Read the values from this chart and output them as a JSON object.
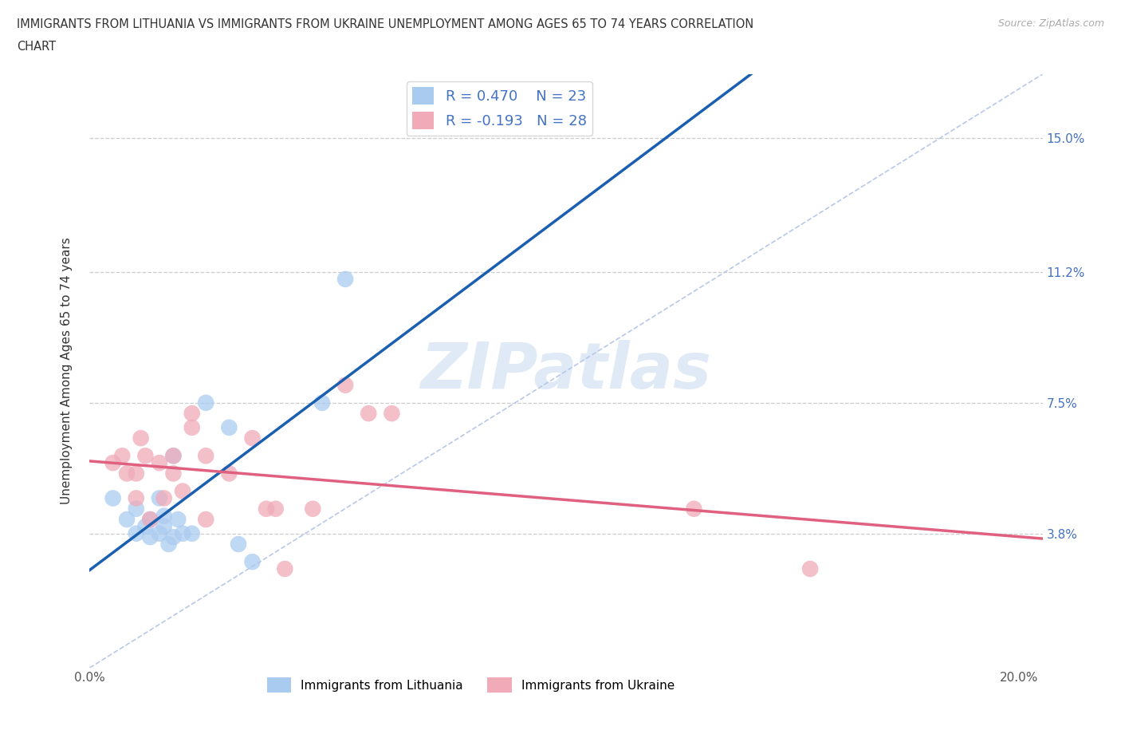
{
  "title_line1": "IMMIGRANTS FROM LITHUANIA VS IMMIGRANTS FROM UKRAINE UNEMPLOYMENT AMONG AGES 65 TO 74 YEARS CORRELATION",
  "title_line2": "CHART",
  "source": "Source: ZipAtlas.com",
  "ylabel": "Unemployment Among Ages 65 to 74 years",
  "xlim": [
    0.0,
    0.205
  ],
  "ylim": [
    0.0,
    0.168
  ],
  "xtick_vals": [
    0.0,
    0.05,
    0.1,
    0.15,
    0.2
  ],
  "ytick_positions": [
    0.038,
    0.075,
    0.112,
    0.15
  ],
  "ytick_labels": [
    "3.8%",
    "7.5%",
    "11.2%",
    "15.0%"
  ],
  "R_lithuania": 0.47,
  "N_lithuania": 23,
  "R_ukraine": -0.193,
  "N_ukraine": 28,
  "color_lithuania": "#aacbf0",
  "color_ukraine": "#f0aab8",
  "line_color_lithuania": "#1a5fb0",
  "line_color_ukraine": "#e06080",
  "diagonal_color": "#b8c8e8",
  "watermark_color": "#dce8f5",
  "background_color": "#ffffff",
  "lithuania_x": [
    0.005,
    0.008,
    0.01,
    0.01,
    0.012,
    0.013,
    0.013,
    0.015,
    0.015,
    0.016,
    0.016,
    0.017,
    0.018,
    0.018,
    0.019,
    0.02,
    0.022,
    0.025,
    0.03,
    0.032,
    0.035,
    0.05,
    0.055
  ],
  "lithuania_y": [
    0.048,
    0.042,
    0.038,
    0.045,
    0.04,
    0.037,
    0.042,
    0.038,
    0.048,
    0.04,
    0.043,
    0.035,
    0.037,
    0.06,
    0.042,
    0.038,
    0.038,
    0.075,
    0.068,
    0.035,
    0.03,
    0.075,
    0.11
  ],
  "ukraine_x": [
    0.005,
    0.007,
    0.008,
    0.01,
    0.01,
    0.011,
    0.012,
    0.013,
    0.015,
    0.016,
    0.018,
    0.018,
    0.02,
    0.022,
    0.022,
    0.025,
    0.025,
    0.03,
    0.035,
    0.038,
    0.04,
    0.042,
    0.048,
    0.055,
    0.06,
    0.065,
    0.13,
    0.155
  ],
  "ukraine_y": [
    0.058,
    0.06,
    0.055,
    0.055,
    0.048,
    0.065,
    0.06,
    0.042,
    0.058,
    0.048,
    0.055,
    0.06,
    0.05,
    0.068,
    0.072,
    0.042,
    0.06,
    0.055,
    0.065,
    0.045,
    0.045,
    0.028,
    0.045,
    0.08,
    0.072,
    0.072,
    0.045,
    0.028
  ]
}
